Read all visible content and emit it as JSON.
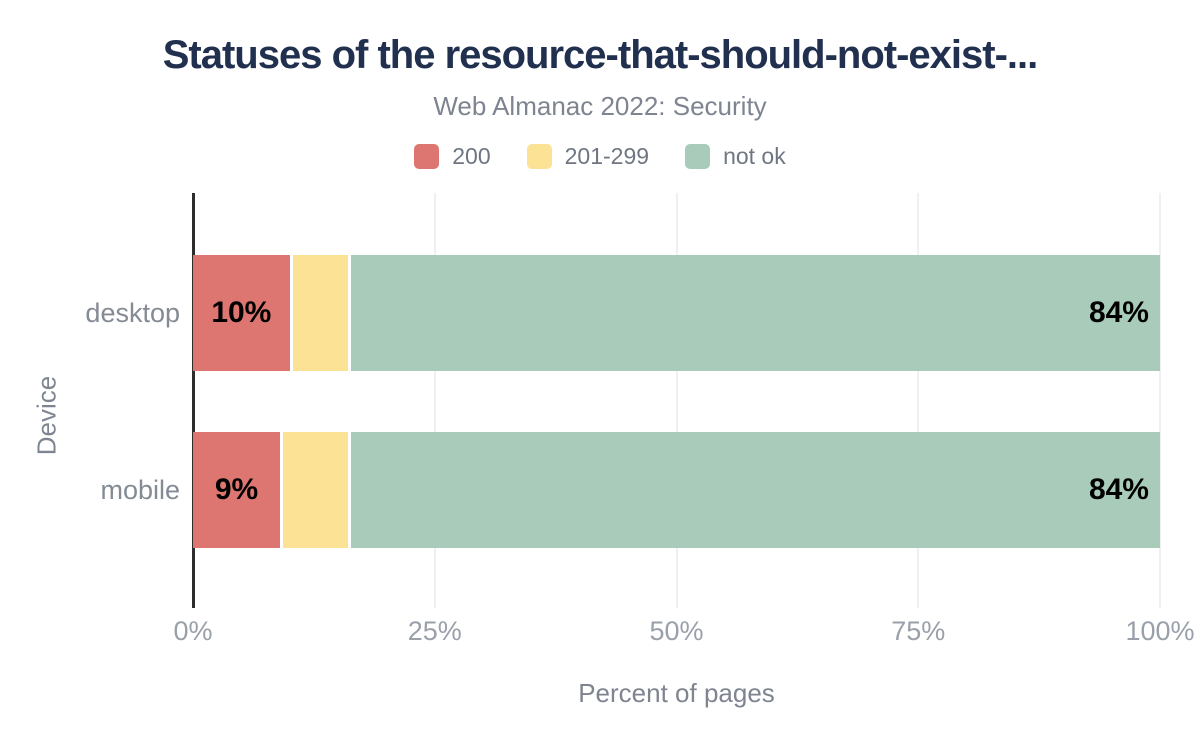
{
  "chart_data": {
    "type": "bar",
    "orientation": "horizontal",
    "stacked": true,
    "title": "Statuses of the resource-that-should-not-exist-...",
    "subtitle": "Web Almanac 2022: Security",
    "xlabel": "Percent of pages",
    "ylabel": "Device",
    "categories": [
      "desktop",
      "mobile"
    ],
    "series": [
      {
        "name": "200",
        "color": "#dd7671",
        "values": [
          10,
          9
        ]
      },
      {
        "name": "201-299",
        "color": "#fce294",
        "values": [
          6,
          7
        ]
      },
      {
        "name": "not ok",
        "color": "#a8cbba",
        "values": [
          84,
          84
        ]
      }
    ],
    "value_labels": [
      [
        "10%",
        "",
        "84%"
      ],
      [
        "9%",
        "",
        "84%"
      ]
    ],
    "x_ticks": [
      "0%",
      "25%",
      "50%",
      "75%",
      "100%"
    ],
    "xlim": [
      0,
      100
    ],
    "legend_position": "top",
    "grid": "vertical-only",
    "colors": {
      "title": "#22304f",
      "subtitle": "#7e8490",
      "axis_line": "#2d2d2d",
      "gridline": "#eef0f1",
      "tick_label": "#9aa0aa",
      "category_label": "#848b95",
      "value_label": "#000000",
      "legend_label": "#6f7681"
    }
  }
}
